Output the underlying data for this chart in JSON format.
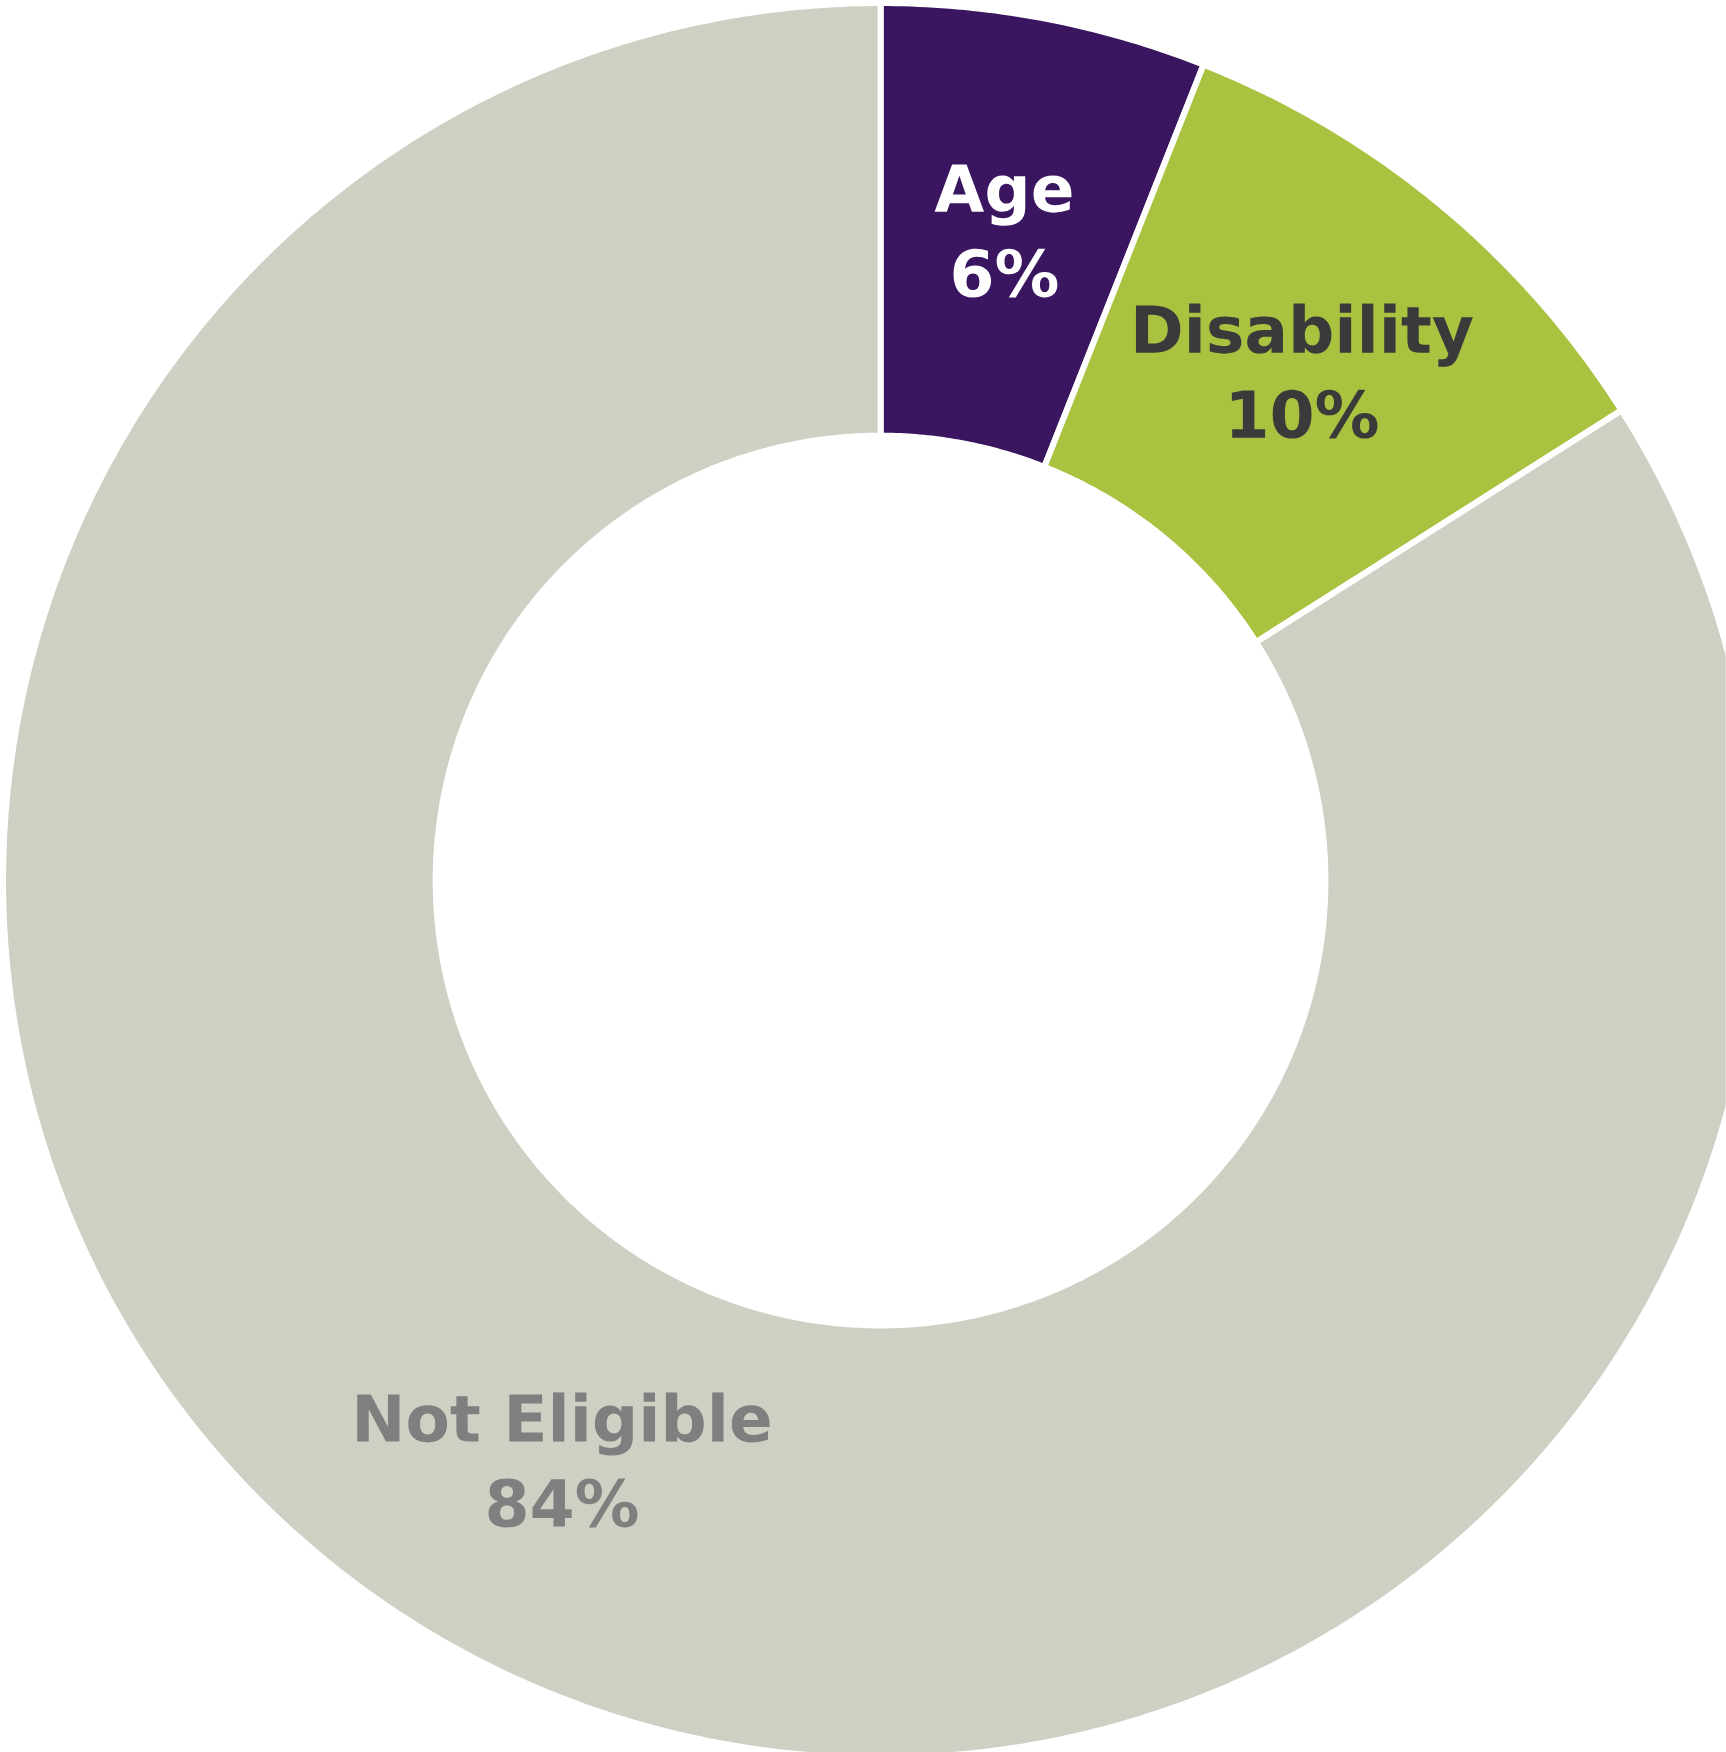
{
  "chart_data": {
    "type": "donut",
    "categories": [
      "Age",
      "Disability",
      "Not Eligible"
    ],
    "values": [
      6,
      10,
      84
    ],
    "value_labels": [
      "6%",
      "10%",
      "84%"
    ],
    "colors": [
      "#3b1660",
      "#a9c23f",
      "#cfd0c3"
    ]
  }
}
